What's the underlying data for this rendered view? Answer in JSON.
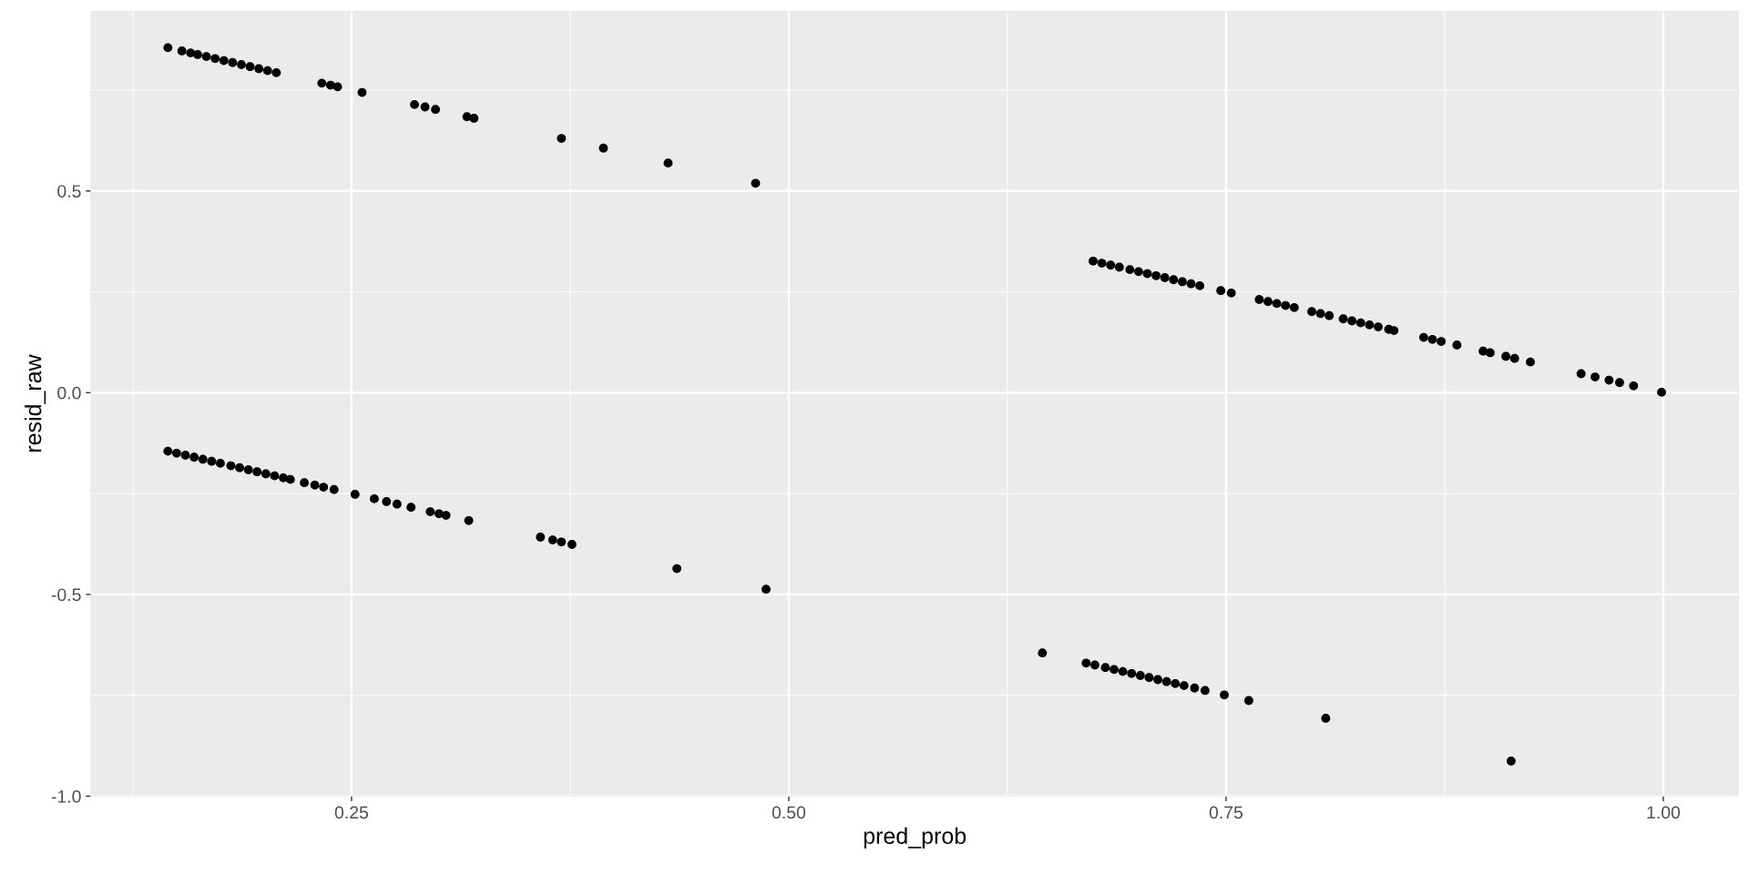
{
  "chart_data": {
    "type": "scatter",
    "xlabel": "pred_prob",
    "ylabel": "resid_raw",
    "xlim": [
      0.101,
      1.043
    ],
    "ylim": [
      -1.0,
      0.945
    ],
    "xticks": [
      0.25,
      {
        "value": 0.5,
        "label": "0.50"
      },
      0.75,
      {
        "value": 1.0,
        "label": "1.00"
      }
    ],
    "yticks": [
      {
        "value": -1.0,
        "label": "-1.0"
      },
      -0.5,
      {
        "value": 0.0,
        "label": "0.0"
      },
      0.5
    ],
    "grid": true,
    "marker": "circle",
    "series": [
      {
        "color": "#000000",
        "x": [
          0.145,
          0.153,
          0.158,
          0.162,
          0.167,
          0.172,
          0.177,
          0.182,
          0.187,
          0.192,
          0.197,
          0.202,
          0.207,
          0.233,
          0.238,
          0.242,
          0.256,
          0.286,
          0.292,
          0.298,
          0.316,
          0.32,
          0.37,
          0.394,
          0.431,
          0.481,
          0.145,
          0.15,
          0.155,
          0.16,
          0.165,
          0.17,
          0.175,
          0.181,
          0.186,
          0.191,
          0.196,
          0.201,
          0.206,
          0.211,
          0.215,
          0.223,
          0.229,
          0.234,
          0.24,
          0.252,
          0.263,
          0.27,
          0.276,
          0.284,
          0.295,
          0.3,
          0.304,
          0.317,
          0.358,
          0.365,
          0.37,
          0.376,
          0.436,
          0.487,
          0.674,
          0.679,
          0.684,
          0.689,
          0.695,
          0.7,
          0.705,
          0.71,
          0.715,
          0.72,
          0.725,
          0.73,
          0.735,
          0.747,
          0.753,
          0.769,
          0.774,
          0.779,
          0.784,
          0.789,
          0.799,
          0.804,
          0.809,
          0.817,
          0.822,
          0.827,
          0.832,
          0.837,
          0.843,
          0.846,
          0.863,
          0.868,
          0.873,
          0.882,
          0.897,
          0.901,
          0.91,
          0.915,
          0.924,
          0.953,
          0.961,
          0.969,
          0.975,
          0.983,
          0.999,
          0.645,
          0.67,
          0.675,
          0.681,
          0.686,
          0.691,
          0.696,
          0.701,
          0.706,
          0.711,
          0.716,
          0.721,
          0.726,
          0.732,
          0.738,
          0.749,
          0.763,
          0.807,
          0.913
        ],
        "values": [
          0.855,
          0.847,
          0.842,
          0.838,
          0.833,
          0.828,
          0.823,
          0.818,
          0.813,
          0.808,
          0.803,
          0.798,
          0.793,
          0.767,
          0.762,
          0.758,
          0.744,
          0.714,
          0.708,
          0.702,
          0.684,
          0.68,
          0.63,
          0.606,
          0.569,
          0.519,
          -0.145,
          -0.15,
          -0.155,
          -0.16,
          -0.165,
          -0.17,
          -0.175,
          -0.181,
          -0.186,
          -0.191,
          -0.196,
          -0.201,
          -0.206,
          -0.211,
          -0.215,
          -0.223,
          -0.229,
          -0.234,
          -0.24,
          -0.252,
          -0.263,
          -0.27,
          -0.276,
          -0.284,
          -0.295,
          -0.3,
          -0.304,
          -0.317,
          -0.358,
          -0.365,
          -0.37,
          -0.376,
          -0.436,
          -0.487,
          0.326,
          0.321,
          0.316,
          0.311,
          0.305,
          0.3,
          0.295,
          0.29,
          0.285,
          0.28,
          0.275,
          0.27,
          0.265,
          0.253,
          0.247,
          0.231,
          0.226,
          0.221,
          0.216,
          0.211,
          0.201,
          0.196,
          0.191,
          0.183,
          0.178,
          0.173,
          0.168,
          0.163,
          0.157,
          0.154,
          0.137,
          0.132,
          0.127,
          0.118,
          0.103,
          0.099,
          0.09,
          0.085,
          0.076,
          0.047,
          0.039,
          0.031,
          0.025,
          0.017,
          0.001,
          -0.645,
          -0.67,
          -0.675,
          -0.681,
          -0.686,
          -0.691,
          -0.696,
          -0.701,
          -0.706,
          -0.711,
          -0.716,
          -0.721,
          -0.726,
          -0.732,
          -0.738,
          -0.749,
          -0.763,
          -0.807,
          -0.913
        ]
      }
    ]
  }
}
